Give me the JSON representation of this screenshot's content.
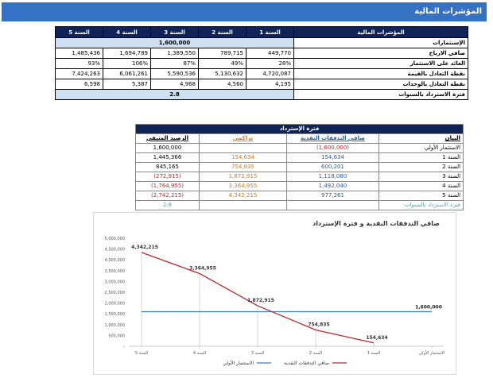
{
  "banner": {
    "title": "المؤشرات المالية"
  },
  "indicators": {
    "header": "المؤشرات المالية",
    "years": [
      "السنة 1",
      "السنة 2",
      "السنة 3",
      "السنة 4",
      "السنة 5"
    ],
    "rows": [
      {
        "label": "الإستثمارات",
        "merged": "1,600,000"
      },
      {
        "label": "صافي الارباح",
        "values": [
          "449,770",
          "789,715",
          "1,389,550",
          "1,694,789",
          "1,485,436"
        ]
      },
      {
        "label": "العائد على الاستثمار",
        "values": [
          "28%",
          "49%",
          "87%",
          "106%",
          "93%"
        ]
      },
      {
        "label": "نقطة التعادل بالقيمة",
        "values": [
          "4,720,087",
          "5,130,632",
          "5,590,536",
          "6,061,261",
          "7,424,263"
        ]
      },
      {
        "label": "نقطة التعادل بالوحدات",
        "values": [
          "4,195",
          "4,560",
          "4,968",
          "5,387",
          "6,598"
        ]
      },
      {
        "label": "فترة الاسترداد بالسنوات",
        "merged": "2.8"
      }
    ]
  },
  "payback": {
    "title": "فترة الإسترداد",
    "columns": [
      "البيان",
      "صافي التدفقات النقدية",
      "تراكمي",
      "الرصيد المتبقي"
    ],
    "rows": [
      {
        "label": "الاستثمار الأولي",
        "cash": "(1,600,000)",
        "cum": "",
        "bal": "1,600,000"
      },
      {
        "label": "السنة 1",
        "cash": "154,634",
        "cum": "154,634",
        "bal": "1,445,366"
      },
      {
        "label": "السنة 2",
        "cash": "600,201",
        "cum": "754,835",
        "bal": "845,165"
      },
      {
        "label": "السنة 3",
        "cash": "1,118,080",
        "cum": "1,872,915",
        "bal": "(272,915)"
      },
      {
        "label": "السنة 4",
        "cash": "1,492,040",
        "cum": "3,364,955",
        "bal": "(1,764,955)"
      },
      {
        "label": "السنة 5",
        "cash": "977,261",
        "cum": "4,342,215",
        "bal": "(2,742,215)"
      }
    ],
    "footer_label": "فترة الاسترداد بالسنوات",
    "footer_value": "2.8"
  },
  "chart_data": {
    "type": "line",
    "title": "صافي التدفقات النقدية و فترة الإسترداد",
    "categories": [
      "الاستثمار الأولي",
      "السنة 1",
      "السنة 2",
      "السنة 3",
      "السنة 4",
      "السنة 5"
    ],
    "series": [
      {
        "name": "الاستثمار الأولي",
        "color": "#3d7ebf",
        "values": [
          1600000,
          1600000,
          1600000,
          1600000,
          1600000,
          1600000
        ]
      },
      {
        "name": "صافي التدفقات النقدية",
        "color": "#c0282d",
        "values": [
          null,
          154634,
          754835,
          1872915,
          3364955,
          4342215
        ]
      }
    ],
    "data_labels": [
      "1,600,000",
      "154,634",
      "754,835",
      "1,872,915",
      "3,364,955",
      "4,342,215"
    ],
    "y_ticks": [
      "-",
      "500,000",
      "1,000,000",
      "1,500,000",
      "2,000,000",
      "2,500,000",
      "3,000,000",
      "3,500,000",
      "4,000,000",
      "4,500,000",
      "5,000,000"
    ],
    "ylim": [
      0,
      5000000
    ],
    "x_direction": "right-to-left",
    "legend": "bottom"
  }
}
